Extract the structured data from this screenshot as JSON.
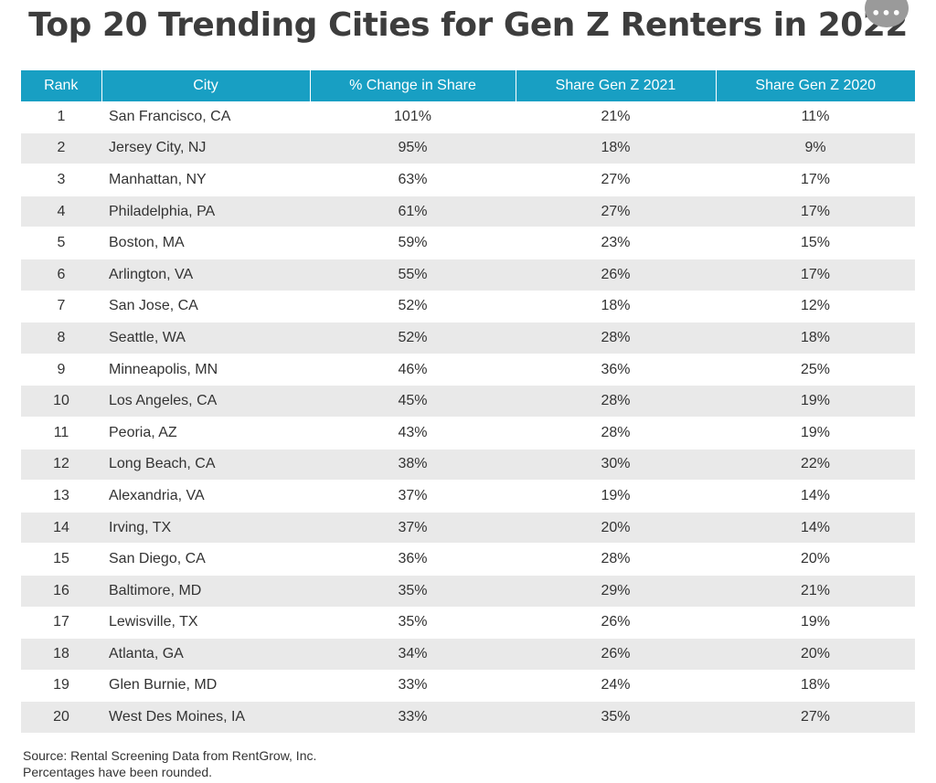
{
  "title": "Top 20 Trending Cities for Gen Z Renters in 2022",
  "more_button_label": "•••",
  "table": {
    "headers": [
      "Rank",
      "City",
      "% Change in Share",
      "Share Gen Z 2021",
      "Share Gen Z 2020"
    ],
    "header_color": "#189fc3",
    "stripe_color": "#e9e9e9",
    "rows": [
      [
        "1",
        "San Francisco, CA",
        "101%",
        "21%",
        "11%"
      ],
      [
        "2",
        "Jersey City, NJ",
        "95%",
        "18%",
        "9%"
      ],
      [
        "3",
        "Manhattan, NY",
        "63%",
        "27%",
        "17%"
      ],
      [
        "4",
        "Philadelphia, PA",
        "61%",
        "27%",
        "17%"
      ],
      [
        "5",
        "Boston, MA",
        "59%",
        "23%",
        "15%"
      ],
      [
        "6",
        "Arlington, VA",
        "55%",
        "26%",
        "17%"
      ],
      [
        "7",
        "San Jose, CA",
        "52%",
        "18%",
        "12%"
      ],
      [
        "8",
        "Seattle, WA",
        "52%",
        "28%",
        "18%"
      ],
      [
        "9",
        "Minneapolis, MN",
        "46%",
        "36%",
        "25%"
      ],
      [
        "10",
        "Los Angeles, CA",
        "45%",
        "28%",
        "19%"
      ],
      [
        "11",
        "Peoria, AZ",
        "43%",
        "28%",
        "19%"
      ],
      [
        "12",
        "Long Beach, CA",
        "38%",
        "30%",
        "22%"
      ],
      [
        "13",
        "Alexandria, VA",
        "37%",
        "19%",
        "14%"
      ],
      [
        "14",
        "Irving, TX",
        "37%",
        "20%",
        "14%"
      ],
      [
        "15",
        "San Diego, CA",
        "36%",
        "28%",
        "20%"
      ],
      [
        "16",
        "Baltimore, MD",
        "35%",
        "29%",
        "21%"
      ],
      [
        "17",
        "Lewisville, TX",
        "35%",
        "26%",
        "19%"
      ],
      [
        "18",
        "Atlanta, GA",
        "34%",
        "26%",
        "20%"
      ],
      [
        "19",
        "Glen Burnie, MD",
        "33%",
        "24%",
        "18%"
      ],
      [
        "20",
        "West Des Moines, IA",
        "33%",
        "35%",
        "27%"
      ]
    ]
  },
  "footnotes": [
    "Source: Rental Screening Data from RentGrow, Inc.",
    "Percentages have been rounded."
  ]
}
